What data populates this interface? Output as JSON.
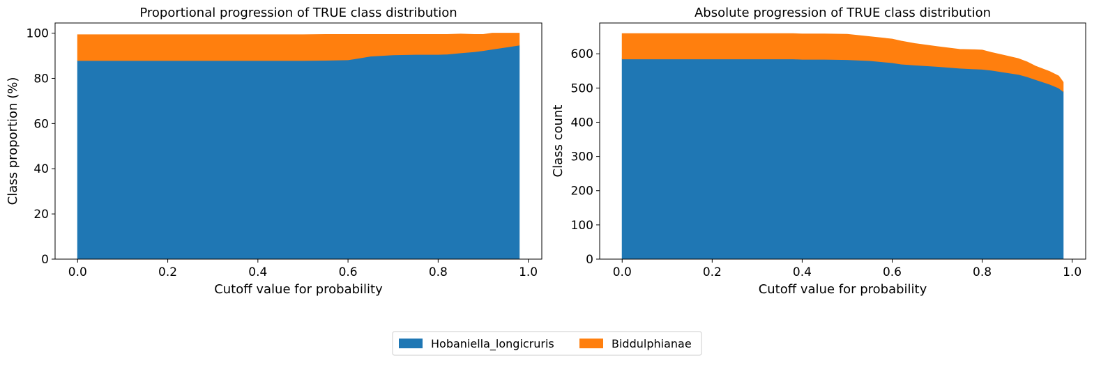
{
  "colors": {
    "series_0": "#1f77b4",
    "series_1": "#ff7f0e"
  },
  "legend": {
    "placement": "bottom-center",
    "entries": [
      "Hobaniella_longicruris",
      "Biddulphianae"
    ]
  },
  "chart_data": [
    {
      "type": "area",
      "stacked": true,
      "title": "Proportional progression of TRUE class distribution",
      "xlabel": "Cutoff value for probability",
      "ylabel": "Class proportion (%)",
      "xlim": [
        -0.05,
        1.03
      ],
      "ylim": [
        0,
        104.5
      ],
      "xticks": [
        0.0,
        0.2,
        0.4,
        0.6,
        0.8,
        1.0
      ],
      "xtick_labels": [
        "0.0",
        "0.2",
        "0.4",
        "0.6",
        "0.8",
        "1.0"
      ],
      "yticks": [
        0,
        20,
        40,
        60,
        80,
        100
      ],
      "ytick_labels": [
        "0",
        "20",
        "40",
        "60",
        "80",
        "100"
      ],
      "x": [
        0.0,
        0.1,
        0.2,
        0.3,
        0.4,
        0.5,
        0.55,
        0.6,
        0.62,
        0.65,
        0.7,
        0.75,
        0.8,
        0.82,
        0.85,
        0.88,
        0.9,
        0.92,
        0.95,
        0.98
      ],
      "series": [
        {
          "name": "Hobaniella_longicruris",
          "values": [
            87.9,
            87.9,
            87.9,
            87.9,
            87.9,
            87.9,
            88.0,
            88.2,
            88.8,
            89.8,
            90.4,
            90.6,
            90.6,
            90.7,
            91.3,
            91.8,
            92.3,
            92.9,
            93.8,
            94.7
          ]
        },
        {
          "name": "Biddulphianae",
          "values": [
            11.4,
            11.4,
            11.4,
            11.4,
            11.4,
            11.4,
            11.4,
            11.2,
            10.6,
            9.6,
            9.0,
            8.8,
            8.8,
            8.7,
            8.3,
            7.6,
            7.1,
            7.1,
            6.2,
            5.3
          ]
        }
      ]
    },
    {
      "type": "area",
      "stacked": true,
      "title": "Absolute progression of TRUE class distribution",
      "xlabel": "Cutoff value for probability",
      "ylabel": "Class count",
      "xlim": [
        -0.05,
        1.03
      ],
      "ylim": [
        0,
        690
      ],
      "xticks": [
        0.0,
        0.2,
        0.4,
        0.6,
        0.8,
        1.0
      ],
      "xtick_labels": [
        "0.0",
        "0.2",
        "0.4",
        "0.6",
        "0.8",
        "1.0"
      ],
      "yticks": [
        0,
        100,
        200,
        300,
        400,
        500,
        600
      ],
      "ytick_labels": [
        "0",
        "100",
        "200",
        "300",
        "400",
        "500",
        "600"
      ],
      "x": [
        0.0,
        0.1,
        0.2,
        0.3,
        0.38,
        0.4,
        0.45,
        0.5,
        0.55,
        0.6,
        0.62,
        0.65,
        0.7,
        0.75,
        0.78,
        0.8,
        0.82,
        0.85,
        0.88,
        0.9,
        0.92,
        0.95,
        0.97,
        0.98
      ],
      "series": [
        {
          "name": "Hobaniella_longicruris",
          "values": [
            585,
            585,
            585,
            585,
            585,
            584,
            584,
            583,
            580,
            574,
            570,
            567,
            563,
            558,
            556,
            555,
            552,
            546,
            540,
            533,
            524,
            511,
            500,
            490
          ]
        },
        {
          "name": "Biddulphianae",
          "values": [
            74,
            74,
            74,
            74,
            74,
            74,
            74,
            74,
            70,
            69,
            67,
            63,
            58,
            55,
            56,
            56,
            52,
            49,
            46,
            43,
            39,
            37,
            35,
            27
          ]
        }
      ]
    }
  ]
}
